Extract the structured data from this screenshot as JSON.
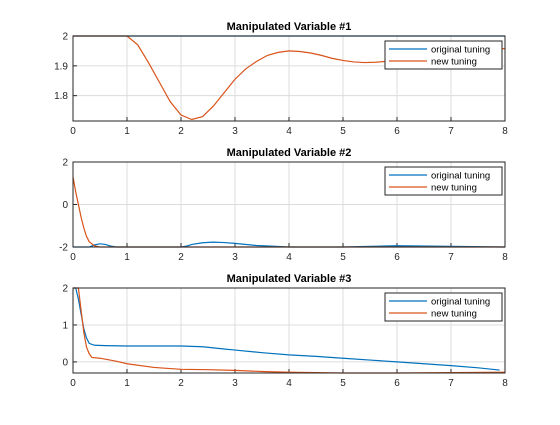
{
  "colors": {
    "original": "#0072BD",
    "new": "#D95319",
    "axis": "#262626",
    "grid": "#dcdcdc",
    "background": "#ffffff"
  },
  "chart_data": [
    {
      "type": "line",
      "title": "Manipulated Variable #1",
      "xlabel": "",
      "ylabel": "",
      "xlim": [
        0,
        8
      ],
      "ylim": [
        1.715,
        2.0
      ],
      "xticks": [
        "0",
        "1",
        "2",
        "3",
        "4",
        "5",
        "6",
        "7",
        "8"
      ],
      "yticks": [
        "1.8",
        "1.9",
        "2"
      ],
      "grid": true,
      "legend": {
        "position": "top-right",
        "entries": [
          "original tuning",
          "new tuning"
        ]
      },
      "series": [
        {
          "name": "original tuning",
          "x": [
            0,
            8
          ],
          "y": [
            2.0,
            2.0
          ]
        },
        {
          "name": "new tuning",
          "x": [
            0,
            1.0,
            1.2,
            1.4,
            1.6,
            1.8,
            2.0,
            2.2,
            2.4,
            2.6,
            2.8,
            3.0,
            3.2,
            3.4,
            3.6,
            3.8,
            4.0,
            4.2,
            4.4,
            4.6,
            4.8,
            5.0,
            5.2,
            5.4,
            5.6,
            5.8,
            6.0,
            6.5,
            7.0,
            7.5,
            8.0
          ],
          "y": [
            2.0,
            2.0,
            1.97,
            1.91,
            1.845,
            1.78,
            1.735,
            1.72,
            1.73,
            1.765,
            1.81,
            1.855,
            1.89,
            1.915,
            1.935,
            1.945,
            1.95,
            1.948,
            1.943,
            1.935,
            1.925,
            1.918,
            1.913,
            1.911,
            1.912,
            1.915,
            1.92,
            1.93,
            1.94,
            1.95,
            1.958
          ]
        }
      ]
    },
    {
      "type": "line",
      "title": "Manipulated Variable #2",
      "xlabel": "",
      "ylabel": "",
      "xlim": [
        0,
        8
      ],
      "ylim": [
        -2.0,
        2.0
      ],
      "xticks": [
        "0",
        "1",
        "2",
        "3",
        "4",
        "5",
        "6",
        "7",
        "8"
      ],
      "yticks": [
        "-2",
        "0",
        "2"
      ],
      "grid": true,
      "legend": {
        "position": "top-right",
        "entries": [
          "original tuning",
          "new tuning"
        ]
      },
      "series": [
        {
          "name": "original tuning",
          "x": [
            0.0,
            0.3,
            0.4,
            0.5,
            0.6,
            0.7,
            0.8,
            1.0,
            2.0,
            2.1,
            2.2,
            2.4,
            2.6,
            2.8,
            3.0,
            3.4,
            4.0,
            5.0,
            6.0,
            7.0,
            8.0
          ],
          "y": [
            -2.0,
            -2.0,
            -1.9,
            -1.85,
            -1.88,
            -1.96,
            -2.0,
            -2.0,
            -2.0,
            -1.96,
            -1.88,
            -1.8,
            -1.77,
            -1.79,
            -1.83,
            -1.93,
            -2.0,
            -2.0,
            -1.94,
            -1.97,
            -2.0
          ]
        },
        {
          "name": "new tuning",
          "x": [
            0.0,
            0.05,
            0.1,
            0.15,
            0.2,
            0.25,
            0.3,
            0.4,
            0.5,
            0.6,
            8.0
          ],
          "y": [
            1.3,
            0.6,
            0.0,
            -0.6,
            -1.1,
            -1.5,
            -1.75,
            -1.95,
            -2.0,
            -2.0,
            -2.0
          ]
        }
      ]
    },
    {
      "type": "line",
      "title": "Manipulated Variable #3",
      "xlabel": "",
      "ylabel": "",
      "xlim": [
        0,
        8
      ],
      "ylim": [
        -0.3,
        2.0
      ],
      "xticks": [
        "0",
        "1",
        "2",
        "3",
        "4",
        "5",
        "6",
        "7",
        "8"
      ],
      "yticks": [
        "0",
        "1",
        "2"
      ],
      "grid": true,
      "legend": {
        "position": "top-right",
        "entries": [
          "original tuning",
          "new tuning"
        ]
      },
      "series": [
        {
          "name": "original tuning",
          "x": [
            0.0,
            0.05,
            0.1,
            0.15,
            0.2,
            0.25,
            0.3,
            0.4,
            0.6,
            1.0,
            1.5,
            2.0,
            2.4,
            2.8,
            3.0,
            3.5,
            4.0,
            4.5,
            5.0,
            5.5,
            6.0,
            6.5,
            7.0,
            7.5,
            7.9
          ],
          "y": [
            2.0,
            2.0,
            1.7,
            1.3,
            0.9,
            0.65,
            0.5,
            0.45,
            0.44,
            0.43,
            0.43,
            0.43,
            0.41,
            0.35,
            0.32,
            0.25,
            0.19,
            0.15,
            0.1,
            0.05,
            0.0,
            -0.05,
            -0.1,
            -0.16,
            -0.22
          ]
        },
        {
          "name": "new tuning",
          "x": [
            0.0,
            0.1,
            0.15,
            0.2,
            0.25,
            0.3,
            0.35,
            0.5,
            0.8,
            1.0,
            1.5,
            2.0,
            2.5,
            3.0,
            3.5,
            4.0,
            5.0,
            6.0,
            7.0,
            8.0
          ],
          "y": [
            2.0,
            2.0,
            1.4,
            0.8,
            0.4,
            0.22,
            0.12,
            0.1,
            0.02,
            -0.05,
            -0.15,
            -0.2,
            -0.21,
            -0.23,
            -0.26,
            -0.28,
            -0.3,
            -0.3,
            -0.29,
            -0.28
          ]
        }
      ]
    }
  ]
}
